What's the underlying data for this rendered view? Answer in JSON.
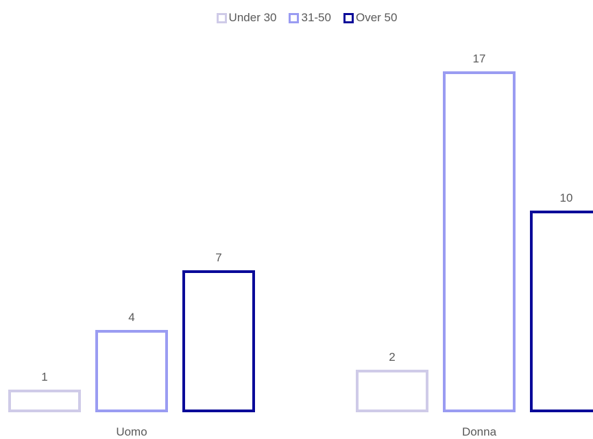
{
  "chart_data": {
    "type": "bar",
    "categories": [
      "Uomo",
      "Donna"
    ],
    "series": [
      {
        "name": "Under 30",
        "values": [
          1,
          2
        ],
        "color": "#cfcbe8"
      },
      {
        "name": "31-50",
        "values": [
          4,
          17
        ],
        "color": "#9a9cf2"
      },
      {
        "name": "Over 50",
        "values": [
          7,
          10
        ],
        "color": "#0a0a99"
      }
    ],
    "title": "",
    "xlabel": "",
    "ylabel": "",
    "ylim": [
      0,
      17
    ],
    "grid": false,
    "legend_position": "top"
  }
}
